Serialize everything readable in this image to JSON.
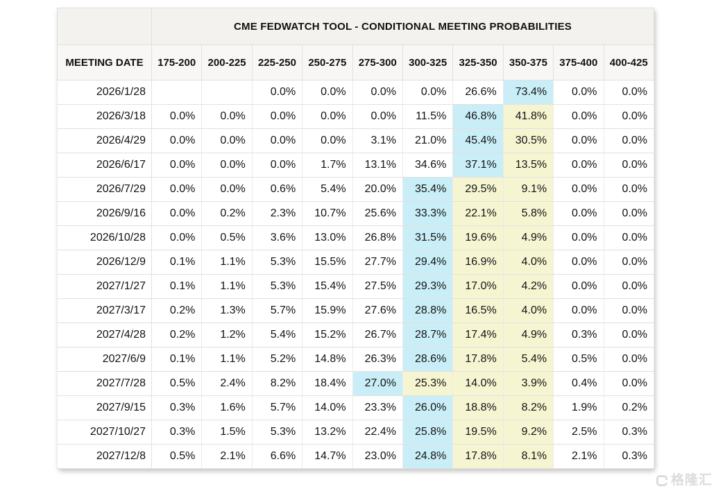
{
  "colors": {
    "cyan_highlight": "#c9eef7",
    "yellow_highlight": "#f6f5d2",
    "title_band_bg": "#f4f2ef",
    "header_row_bg": "#f8f7f5",
    "border": "#e2e0de",
    "text": "#111111",
    "watermark": "#dedcd9"
  },
  "watermark": {
    "text": "格隆汇"
  },
  "chart_data": {
    "type": "table",
    "title": "CME FEDWATCH TOOL - CONDITIONAL MEETING PROBABILITIES",
    "row_header_label": "MEETING DATE",
    "columns": [
      "175-200",
      "200-225",
      "225-250",
      "250-275",
      "275-300",
      "300-325",
      "325-350",
      "350-375",
      "375-400",
      "400-425"
    ],
    "value_format": "percent_one_decimal",
    "highlight_legend": {
      "cyan": "highest probability in row",
      "yellow": "secondary highlighted range"
    },
    "rows": [
      {
        "date": "2026/1/28",
        "values": [
          null,
          null,
          0.0,
          0.0,
          0.0,
          0.0,
          26.6,
          73.4,
          0.0,
          0.0
        ],
        "highlights": {
          "7": "cyan"
        }
      },
      {
        "date": "2026/3/18",
        "values": [
          0.0,
          0.0,
          0.0,
          0.0,
          0.0,
          11.5,
          46.8,
          41.8,
          0.0,
          0.0
        ],
        "highlights": {
          "6": "cyan",
          "7": "yellow"
        }
      },
      {
        "date": "2026/4/29",
        "values": [
          0.0,
          0.0,
          0.0,
          0.0,
          3.1,
          21.0,
          45.4,
          30.5,
          0.0,
          0.0
        ],
        "highlights": {
          "6": "cyan",
          "7": "yellow"
        }
      },
      {
        "date": "2026/6/17",
        "values": [
          0.0,
          0.0,
          0.0,
          1.7,
          13.1,
          34.6,
          37.1,
          13.5,
          0.0,
          0.0
        ],
        "highlights": {
          "6": "cyan",
          "7": "yellow"
        }
      },
      {
        "date": "2026/7/29",
        "values": [
          0.0,
          0.0,
          0.6,
          5.4,
          20.0,
          35.4,
          29.5,
          9.1,
          0.0,
          0.0
        ],
        "highlights": {
          "5": "cyan",
          "6": "yellow",
          "7": "yellow"
        }
      },
      {
        "date": "2026/9/16",
        "values": [
          0.0,
          0.2,
          2.3,
          10.7,
          25.6,
          33.3,
          22.1,
          5.8,
          0.0,
          0.0
        ],
        "highlights": {
          "5": "cyan",
          "6": "yellow",
          "7": "yellow"
        }
      },
      {
        "date": "2026/10/28",
        "values": [
          0.0,
          0.5,
          3.6,
          13.0,
          26.8,
          31.5,
          19.6,
          4.9,
          0.0,
          0.0
        ],
        "highlights": {
          "5": "cyan",
          "6": "yellow",
          "7": "yellow"
        }
      },
      {
        "date": "2026/12/9",
        "values": [
          0.1,
          1.1,
          5.3,
          15.5,
          27.7,
          29.4,
          16.9,
          4.0,
          0.0,
          0.0
        ],
        "highlights": {
          "5": "cyan",
          "6": "yellow",
          "7": "yellow"
        }
      },
      {
        "date": "2027/1/27",
        "values": [
          0.1,
          1.1,
          5.3,
          15.4,
          27.5,
          29.3,
          17.0,
          4.2,
          0.0,
          0.0
        ],
        "highlights": {
          "5": "cyan",
          "6": "yellow",
          "7": "yellow"
        }
      },
      {
        "date": "2027/3/17",
        "values": [
          0.2,
          1.3,
          5.7,
          15.9,
          27.6,
          28.8,
          16.5,
          4.0,
          0.0,
          0.0
        ],
        "highlights": {
          "5": "cyan",
          "6": "yellow",
          "7": "yellow"
        }
      },
      {
        "date": "2027/4/28",
        "values": [
          0.2,
          1.2,
          5.4,
          15.2,
          26.7,
          28.7,
          17.4,
          4.9,
          0.3,
          0.0
        ],
        "highlights": {
          "5": "cyan",
          "6": "yellow",
          "7": "yellow"
        }
      },
      {
        "date": "2027/6/9",
        "values": [
          0.1,
          1.1,
          5.2,
          14.8,
          26.3,
          28.6,
          17.8,
          5.4,
          0.5,
          0.0
        ],
        "highlights": {
          "5": "cyan",
          "6": "yellow",
          "7": "yellow"
        }
      },
      {
        "date": "2027/7/28",
        "values": [
          0.5,
          2.4,
          8.2,
          18.4,
          27.0,
          25.3,
          14.0,
          3.9,
          0.4,
          0.0
        ],
        "highlights": {
          "4": "cyan",
          "5": "yellow",
          "6": "yellow",
          "7": "yellow"
        }
      },
      {
        "date": "2027/9/15",
        "values": [
          0.3,
          1.6,
          5.7,
          14.0,
          23.3,
          26.0,
          18.8,
          8.2,
          1.9,
          0.2
        ],
        "highlights": {
          "5": "cyan",
          "6": "yellow",
          "7": "yellow"
        }
      },
      {
        "date": "2027/10/27",
        "values": [
          0.3,
          1.5,
          5.3,
          13.2,
          22.4,
          25.8,
          19.5,
          9.2,
          2.5,
          0.3
        ],
        "highlights": {
          "5": "cyan",
          "6": "yellow",
          "7": "yellow"
        }
      },
      {
        "date": "2027/12/8",
        "values": [
          0.5,
          2.1,
          6.6,
          14.7,
          23.0,
          24.8,
          17.8,
          8.1,
          2.1,
          0.3
        ],
        "highlights": {
          "5": "cyan",
          "6": "yellow",
          "7": "yellow"
        }
      }
    ]
  }
}
